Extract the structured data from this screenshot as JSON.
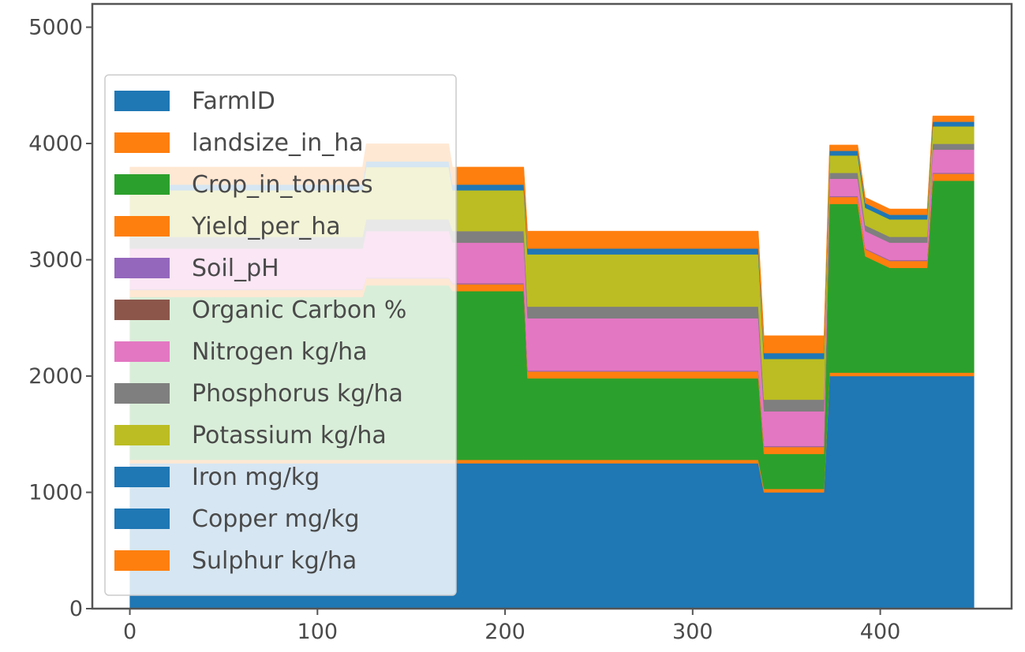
{
  "chart_data": {
    "type": "area",
    "title": "",
    "xlabel": "",
    "ylabel": "",
    "xlim": [
      -20,
      470
    ],
    "ylim": [
      0,
      5200
    ],
    "x_ticks": [
      0,
      100,
      200,
      300,
      400
    ],
    "y_ticks": [
      0,
      1000,
      2000,
      3000,
      4000,
      5000
    ],
    "grid": false,
    "legend_position": "center-left",
    "x": [
      0,
      124,
      126,
      170,
      172,
      210,
      212,
      335,
      338,
      370,
      373,
      388,
      392,
      405,
      425,
      428,
      450
    ],
    "series": [
      {
        "name": "FarmID",
        "color": "#1f77b4",
        "values": [
          1250,
          1250,
          1250,
          1250,
          1250,
          1250,
          1250,
          1250,
          1000,
          1000,
          2000,
          2000,
          2000,
          2000,
          2000,
          2000,
          2000
        ]
      },
      {
        "name": "landsize_in_ha",
        "color": "#ff7f0e",
        "values": [
          30,
          30,
          30,
          30,
          30,
          30,
          30,
          30,
          30,
          30,
          30,
          30,
          30,
          30,
          30,
          30,
          30
        ]
      },
      {
        "name": "Crop_in_tonnes",
        "color": "#2ca02c",
        "values": [
          1400,
          1400,
          1500,
          1500,
          1450,
          1450,
          700,
          700,
          300,
          300,
          1450,
          1450,
          1000,
          900,
          900,
          1650,
          1650
        ]
      },
      {
        "name": "Yield_per_ha",
        "color": "#ff7f0e",
        "values": [
          60,
          60,
          60,
          60,
          60,
          60,
          60,
          60,
          60,
          60,
          60,
          60,
          60,
          60,
          60,
          60,
          60
        ]
      },
      {
        "name": "Soil_pH",
        "color": "#9467bd",
        "values": [
          6,
          6,
          6,
          6,
          6,
          6,
          6,
          6,
          6,
          6,
          6,
          6,
          6,
          6,
          6,
          6,
          6
        ]
      },
      {
        "name": "Organic Carbon %",
        "color": "#8c564b",
        "values": [
          1,
          1,
          1,
          1,
          1,
          1,
          1,
          1,
          1,
          1,
          1,
          1,
          1,
          1,
          1,
          1,
          1
        ]
      },
      {
        "name": "Nitrogen kg/ha",
        "color": "#e377c2",
        "values": [
          350,
          350,
          400,
          400,
          350,
          350,
          450,
          450,
          300,
          300,
          150,
          150,
          150,
          150,
          150,
          200,
          200
        ]
      },
      {
        "name": "Phosphorus kg/ha",
        "color": "#7f7f7f",
        "values": [
          100,
          100,
          100,
          100,
          100,
          100,
          100,
          100,
          100,
          100,
          50,
          50,
          50,
          50,
          50,
          50,
          50
        ]
      },
      {
        "name": "Potassium kg/ha",
        "color": "#bcbd22",
        "values": [
          400,
          400,
          450,
          450,
          350,
          350,
          450,
          450,
          350,
          350,
          150,
          150,
          150,
          150,
          150,
          150,
          150
        ]
      },
      {
        "name": "Iron mg/kg",
        "color": "#1f77b4",
        "values": [
          40,
          40,
          40,
          40,
          40,
          40,
          40,
          40,
          40,
          40,
          30,
          30,
          30,
          30,
          30,
          30,
          30
        ]
      },
      {
        "name": "Copper mg/kg",
        "color": "#1f77b4",
        "values": [
          10,
          10,
          10,
          10,
          10,
          10,
          10,
          10,
          10,
          10,
          10,
          10,
          10,
          10,
          10,
          10,
          10
        ]
      },
      {
        "name": "Sulphur kg/ha",
        "color": "#ff7f0e",
        "values": [
          150,
          150,
          150,
          150,
          150,
          150,
          150,
          150,
          150,
          150,
          50,
          50,
          50,
          50,
          50,
          50,
          50
        ]
      }
    ]
  }
}
